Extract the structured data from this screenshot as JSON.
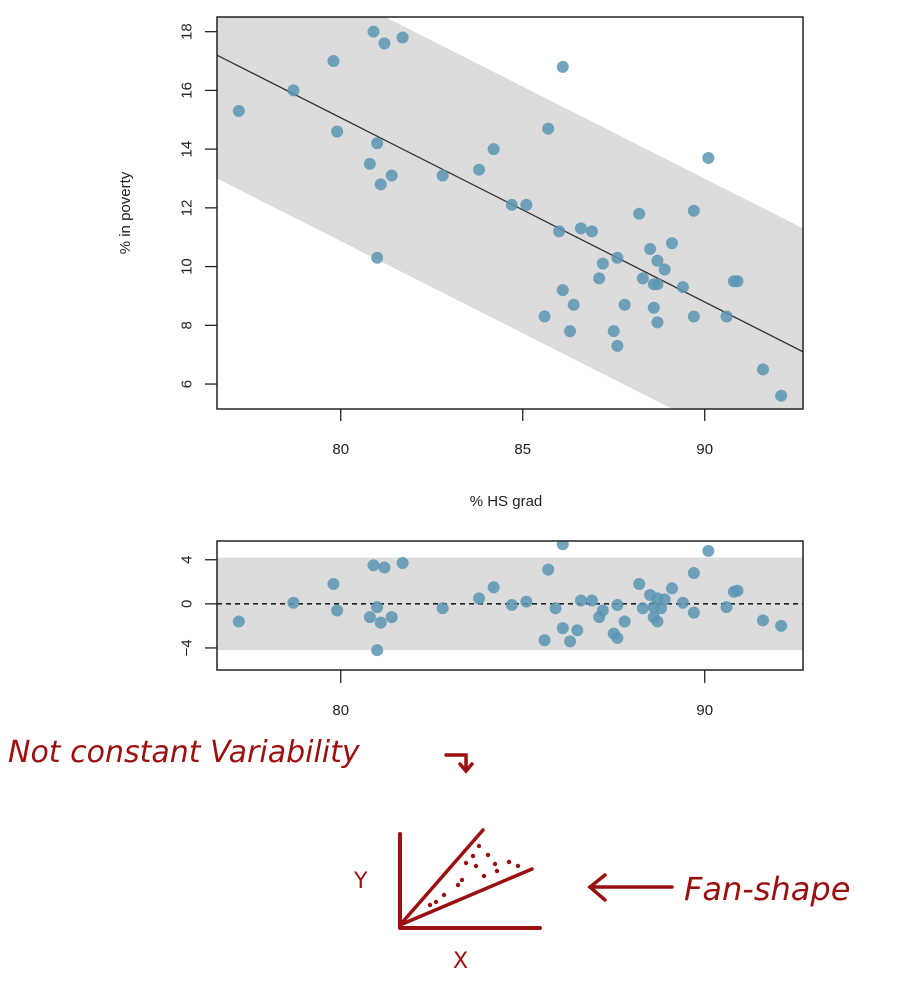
{
  "chart_data": [
    {
      "type": "scatter",
      "title": "",
      "xlabel": "% HS grad",
      "ylabel": "% in poverty",
      "xlim": [
        76.6,
        92.7
      ],
      "ylim": [
        5.15,
        18.5
      ],
      "xticks": [
        80,
        85,
        90
      ],
      "yticks": [
        6,
        8,
        10,
        12,
        14,
        16,
        18
      ],
      "grid": false,
      "legend": null,
      "point_color": "#5b95b4",
      "band_color": "#dcdcdc",
      "line_color": "#333333",
      "regression_line": {
        "x": [
          76.6,
          92.7
        ],
        "y": [
          17.2,
          7.1
        ]
      },
      "band_halfwidth": 4.2,
      "points": [
        {
          "x": 77.2,
          "y": 15.3
        },
        {
          "x": 78.7,
          "y": 16.0
        },
        {
          "x": 79.8,
          "y": 17.0
        },
        {
          "x": 79.9,
          "y": 14.6
        },
        {
          "x": 80.8,
          "y": 13.5
        },
        {
          "x": 80.9,
          "y": 18.0
        },
        {
          "x": 81.0,
          "y": 14.2
        },
        {
          "x": 81.0,
          "y": 10.3
        },
        {
          "x": 81.1,
          "y": 12.8
        },
        {
          "x": 81.2,
          "y": 17.6
        },
        {
          "x": 81.4,
          "y": 13.1
        },
        {
          "x": 81.7,
          "y": 17.8
        },
        {
          "x": 82.8,
          "y": 13.1
        },
        {
          "x": 83.8,
          "y": 13.3
        },
        {
          "x": 84.2,
          "y": 14.0
        },
        {
          "x": 84.7,
          "y": 12.1
        },
        {
          "x": 85.1,
          "y": 12.1
        },
        {
          "x": 85.6,
          "y": 8.3
        },
        {
          "x": 85.7,
          "y": 14.7
        },
        {
          "x": 86.0,
          "y": 11.2
        },
        {
          "x": 86.1,
          "y": 16.8
        },
        {
          "x": 86.1,
          "y": 9.2
        },
        {
          "x": 86.3,
          "y": 7.8
        },
        {
          "x": 86.4,
          "y": 8.7
        },
        {
          "x": 86.6,
          "y": 11.3
        },
        {
          "x": 86.9,
          "y": 11.2
        },
        {
          "x": 87.1,
          "y": 9.6
        },
        {
          "x": 87.2,
          "y": 10.1
        },
        {
          "x": 87.5,
          "y": 7.8
        },
        {
          "x": 87.6,
          "y": 7.3
        },
        {
          "x": 87.6,
          "y": 10.3
        },
        {
          "x": 87.8,
          "y": 8.7
        },
        {
          "x": 88.2,
          "y": 11.8
        },
        {
          "x": 88.3,
          "y": 9.6
        },
        {
          "x": 88.5,
          "y": 10.6
        },
        {
          "x": 88.6,
          "y": 8.6
        },
        {
          "x": 88.6,
          "y": 9.4
        },
        {
          "x": 88.7,
          "y": 10.2
        },
        {
          "x": 88.7,
          "y": 8.1
        },
        {
          "x": 88.7,
          "y": 9.4
        },
        {
          "x": 88.9,
          "y": 9.9
        },
        {
          "x": 89.1,
          "y": 10.8
        },
        {
          "x": 89.4,
          "y": 9.3
        },
        {
          "x": 89.7,
          "y": 11.9
        },
        {
          "x": 89.7,
          "y": 8.3
        },
        {
          "x": 90.1,
          "y": 13.7
        },
        {
          "x": 90.6,
          "y": 8.3
        },
        {
          "x": 90.8,
          "y": 9.5
        },
        {
          "x": 90.9,
          "y": 9.5
        },
        {
          "x": 91.6,
          "y": 6.5
        },
        {
          "x": 92.1,
          "y": 5.6
        }
      ]
    },
    {
      "type": "scatter",
      "title": "",
      "xlabel": "",
      "ylabel": "",
      "xlim": [
        76.6,
        92.7
      ],
      "ylim": [
        -6.0,
        5.7
      ],
      "xticks": [
        80,
        90
      ],
      "yticks": [
        -4,
        0,
        4
      ],
      "grid": false,
      "reference_line": {
        "y": 0,
        "style": "dashed"
      },
      "band": [
        -4.2,
        4.2
      ],
      "points": [
        {
          "x": 77.2,
          "y": -1.6
        },
        {
          "x": 78.7,
          "y": 0.1
        },
        {
          "x": 79.8,
          "y": 1.8
        },
        {
          "x": 79.9,
          "y": -0.6
        },
        {
          "x": 80.8,
          "y": -1.2
        },
        {
          "x": 80.9,
          "y": 3.5
        },
        {
          "x": 81.0,
          "y": -0.3
        },
        {
          "x": 81.0,
          "y": -4.2
        },
        {
          "x": 81.1,
          "y": -1.7
        },
        {
          "x": 81.2,
          "y": 3.3
        },
        {
          "x": 81.4,
          "y": -1.2
        },
        {
          "x": 81.7,
          "y": 3.7
        },
        {
          "x": 82.8,
          "y": -0.4
        },
        {
          "x": 83.8,
          "y": 0.5
        },
        {
          "x": 84.2,
          "y": 1.5
        },
        {
          "x": 84.7,
          "y": -0.1
        },
        {
          "x": 85.1,
          "y": 0.2
        },
        {
          "x": 85.6,
          "y": -3.3
        },
        {
          "x": 85.7,
          "y": 3.1
        },
        {
          "x": 85.9,
          "y": -0.4
        },
        {
          "x": 86.1,
          "y": 5.4
        },
        {
          "x": 86.1,
          "y": -2.2
        },
        {
          "x": 86.3,
          "y": -3.4
        },
        {
          "x": 86.5,
          "y": -2.4
        },
        {
          "x": 86.6,
          "y": 0.3
        },
        {
          "x": 86.9,
          "y": 0.3
        },
        {
          "x": 87.1,
          "y": -1.2
        },
        {
          "x": 87.2,
          "y": -0.6
        },
        {
          "x": 87.5,
          "y": -2.7
        },
        {
          "x": 87.6,
          "y": -3.1
        },
        {
          "x": 87.6,
          "y": -0.1
        },
        {
          "x": 87.8,
          "y": -1.6
        },
        {
          "x": 88.2,
          "y": 1.8
        },
        {
          "x": 88.3,
          "y": -0.4
        },
        {
          "x": 88.5,
          "y": 0.8
        },
        {
          "x": 88.6,
          "y": -1.2
        },
        {
          "x": 88.6,
          "y": -0.3
        },
        {
          "x": 88.7,
          "y": 0.5
        },
        {
          "x": 88.7,
          "y": -1.6
        },
        {
          "x": 88.8,
          "y": -0.4
        },
        {
          "x": 88.9,
          "y": 0.4
        },
        {
          "x": 89.1,
          "y": 1.4
        },
        {
          "x": 89.4,
          "y": 0.1
        },
        {
          "x": 89.7,
          "y": 2.8
        },
        {
          "x": 89.7,
          "y": -0.8
        },
        {
          "x": 90.1,
          "y": 4.8
        },
        {
          "x": 90.6,
          "y": -0.3
        },
        {
          "x": 90.8,
          "y": 1.1
        },
        {
          "x": 90.9,
          "y": 1.2
        },
        {
          "x": 91.6,
          "y": -1.5
        },
        {
          "x": 92.1,
          "y": -2.0
        }
      ]
    }
  ],
  "annotations": {
    "main_note": "Not constant Variability",
    "sketch_y_label": "Y",
    "sketch_x_label": "X",
    "sketch_callout": "Fan-shape",
    "ink_color": "#9b0f0f"
  }
}
